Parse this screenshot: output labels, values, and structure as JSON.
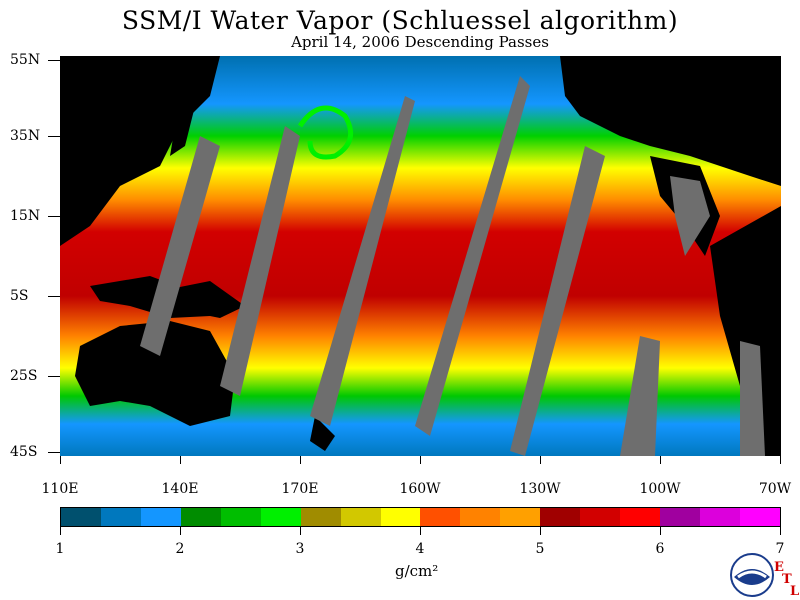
{
  "title": "SSM/I Water Vapor (Schluessel algorithm)",
  "subtitle": "April 14, 2006  Descending Passes",
  "lat_labels": [
    "55N",
    "35N",
    "15N",
    "5S",
    "25S",
    "45S"
  ],
  "lon_labels": [
    "110E",
    "140E",
    "170E",
    "160W",
    "130W",
    "100W",
    "70W"
  ],
  "colorbar": {
    "colors": [
      "#00506e",
      "#0078be",
      "#1496ff",
      "#008c00",
      "#00be00",
      "#00f000",
      "#a08c00",
      "#d2c800",
      "#ffff00",
      "#ff5000",
      "#ff8200",
      "#ffa000",
      "#a00000",
      "#d20000",
      "#ff0000",
      "#a0009f",
      "#dc00dc",
      "#ff00ff"
    ],
    "tick_labels": [
      "1",
      "2",
      "3",
      "4",
      "5",
      "6",
      "7"
    ],
    "units": "g/cm²"
  },
  "logo": {
    "name": "NOAA",
    "extra_letters": [
      "E",
      "T",
      "L"
    ]
  }
}
